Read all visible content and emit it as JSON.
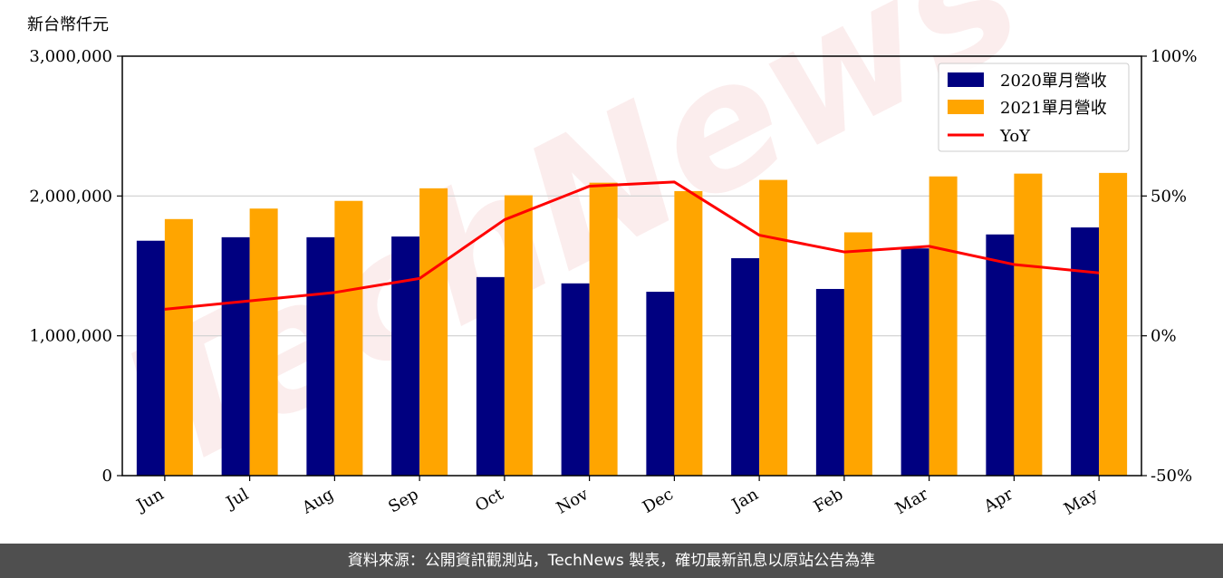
{
  "chart_data": {
    "type": "bar",
    "y_unit_label": "新台幣仟元",
    "categories": [
      "Jun",
      "Jul",
      "Aug",
      "Sep",
      "Oct",
      "Nov",
      "Dec",
      "Jan",
      "Feb",
      "Mar",
      "Apr",
      "May"
    ],
    "series": [
      {
        "name": "2020單月營收",
        "type": "bar",
        "axis": "left",
        "color": "#000080",
        "values": [
          1680000,
          1705000,
          1705000,
          1710000,
          1420000,
          1375000,
          1315000,
          1555000,
          1335000,
          1625000,
          1725000,
          1775000
        ]
      },
      {
        "name": "2021單月營收",
        "type": "bar",
        "axis": "left",
        "color": "#FFA500",
        "values": [
          1835000,
          1910000,
          1965000,
          2055000,
          2005000,
          2095000,
          2035000,
          2115000,
          1740000,
          2140000,
          2160000,
          2165000
        ]
      },
      {
        "name": "YoY",
        "type": "line",
        "axis": "right",
        "color": "#FF0000",
        "values": [
          9.5,
          12.5,
          15.5,
          20.5,
          41.5,
          53.5,
          55,
          36,
          30,
          32,
          25.5,
          22.5
        ]
      }
    ],
    "ylim_left": [
      0,
      3000000
    ],
    "yticks_left": [
      0,
      1000000,
      2000000,
      3000000
    ],
    "ytick_labels_left": [
      "0",
      "1,000,000",
      "2,000,000",
      "3,000,000"
    ],
    "ylim_right": [
      -50,
      100
    ],
    "yticks_right": [
      -50,
      0,
      50,
      100
    ],
    "ytick_labels_right": [
      "-50%",
      "0%",
      "50%",
      "100%"
    ],
    "grid": "horizontal",
    "legend_position": "top-right"
  },
  "watermark": "TechNews",
  "footer": {
    "text": "資料來源：公開資訊觀測站，TechNews 製表，確切最新訊息以原站公告為準"
  }
}
